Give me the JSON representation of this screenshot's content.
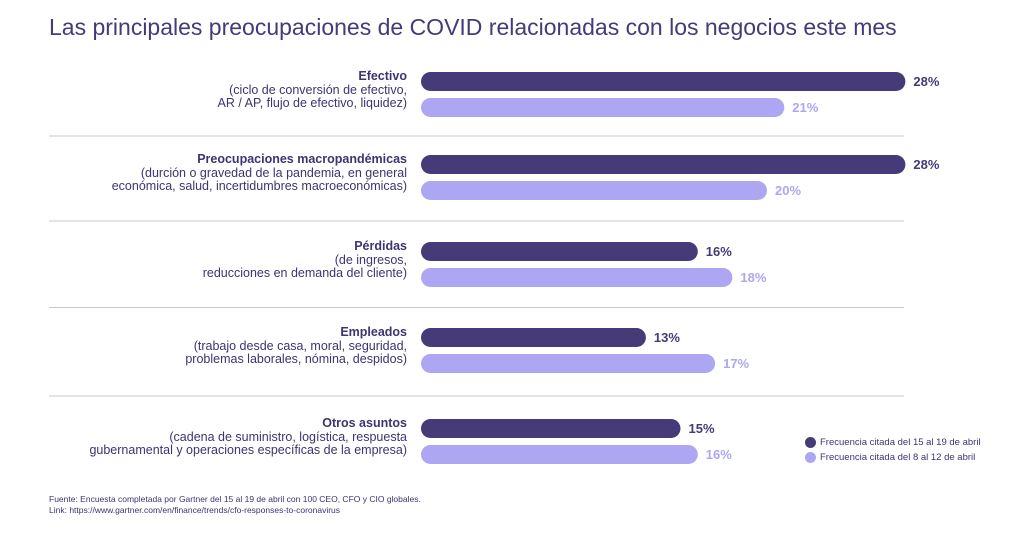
{
  "title": "Las principales preocupaciones de COVID relacionadas con los negocios este mes",
  "colors": {
    "series1": "#463a78",
    "series2": "#ada6f2",
    "divider": "#c8c8c8"
  },
  "chart_data": {
    "type": "bar",
    "orientation": "horizontal",
    "title": "Las principales preocupaciones de COVID relacionadas con los negocios este mes",
    "categories": [
      {
        "name": "Efectivo",
        "detail": [
          "(ciclo de conversión de efectivo,",
          "AR / AP, flujo de efectivo, liquidez)"
        ]
      },
      {
        "name": "Preocupaciones macropandémicas",
        "detail": [
          "(durción o gravedad de la pandemia, en general",
          "económica, salud, incertidumbres macroeconómicas)"
        ]
      },
      {
        "name": "Pérdidas",
        "detail": [
          "(de ingresos,",
          "reducciones en demanda del cliente)"
        ]
      },
      {
        "name": "Empleados",
        "detail": [
          "(trabajo desde casa, moral, seguridad,",
          "problemas laborales, nómina, despidos)"
        ]
      },
      {
        "name": "Otros asuntos",
        "detail": [
          "(cadena de suministro, logística, respuesta",
          "gubernamental y operaciones específicas de la empresa)"
        ]
      }
    ],
    "series": [
      {
        "name": "Frecuencia citada del 15 al 19 de abril",
        "values": [
          28,
          28,
          16,
          13,
          15
        ]
      },
      {
        "name": "Frecuencia citada del 8 al 12 de abril",
        "values": [
          21,
          20,
          18,
          17,
          16
        ]
      }
    ],
    "value_suffix": "%",
    "legend_position": "bottom-right",
    "grid": false
  },
  "footer": {
    "source": "Fuente:   Encuesta completada por Gartner del 15 al 19 de abril con 100 CEO, CFO y CIO globales.",
    "link": "Link: https://www.gartner.com/en/finance/trends/cfo-responses-to-coronavirus"
  }
}
